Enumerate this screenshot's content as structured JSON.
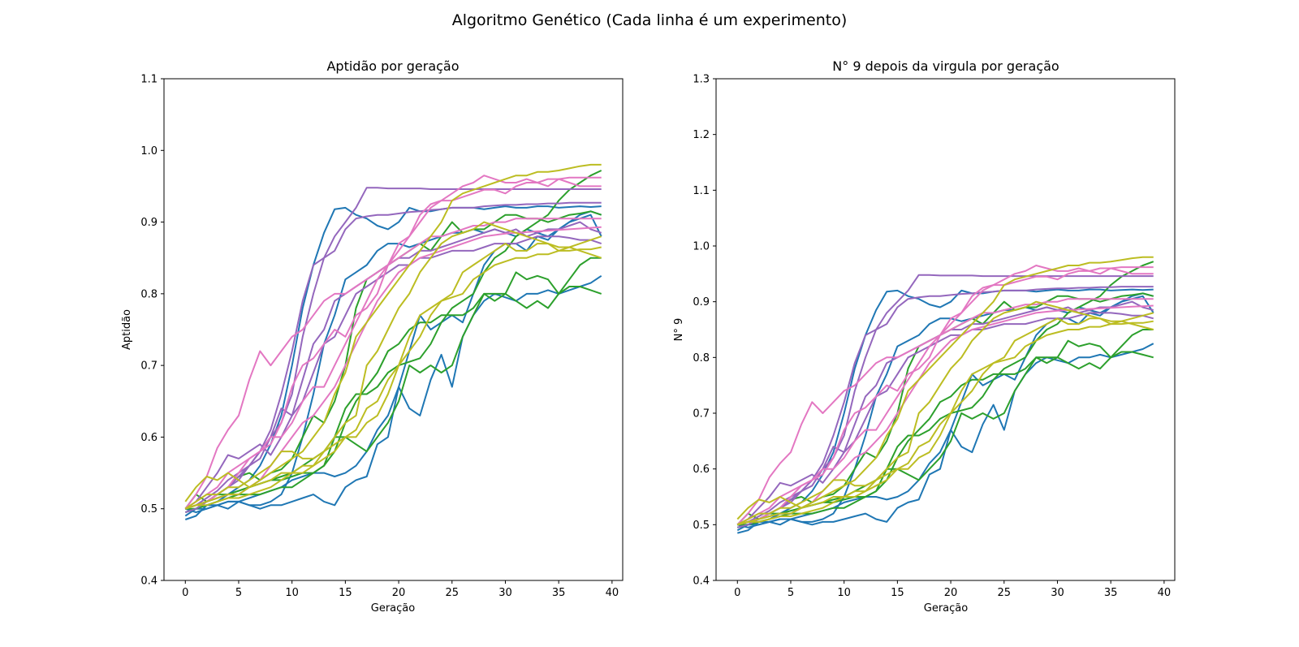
{
  "figure": {
    "suptitle": "Algoritmo Genético (Cada linha é um experimento)"
  },
  "colors": {
    "blue": "#1f77b4",
    "green": "#2ca02c",
    "purple": "#9467bd",
    "pink": "#e377c2",
    "olive": "#bcbd22",
    "axis": "#000000",
    "background": "#ffffff"
  },
  "chart_data": [
    {
      "type": "line",
      "title": "Aptidão por geração",
      "xlabel": "Geração",
      "ylabel": "Aptidão",
      "xlim": [
        -2,
        41
      ],
      "ylim": [
        0.4,
        1.1
      ],
      "xticks": [
        0,
        5,
        10,
        15,
        20,
        25,
        30,
        35,
        40
      ],
      "xtick_labels": [
        "0",
        "5",
        "10",
        "15",
        "20",
        "25",
        "30",
        "35",
        "40"
      ],
      "yticks": [
        0.4,
        0.5,
        0.6,
        0.7,
        0.8,
        0.9,
        1.0,
        1.1
      ],
      "ytick_labels": [
        "0.4",
        "0.5",
        "0.6",
        "0.7",
        "0.8",
        "0.9",
        "1.0",
        "1.1"
      ],
      "grid": false,
      "legend": "none",
      "x": [
        0,
        1,
        2,
        3,
        4,
        5,
        6,
        7,
        8,
        9,
        10,
        11,
        12,
        13,
        14,
        15,
        16,
        17,
        18,
        19,
        20,
        21,
        22,
        23,
        24,
        25,
        26,
        27,
        28,
        29,
        30,
        31,
        32,
        33,
        34,
        35,
        36,
        37,
        38,
        39
      ],
      "series": [
        {
          "color": "blue",
          "values": [
            0.485,
            0.49,
            0.505,
            0.51,
            0.52,
            0.53,
            0.54,
            0.56,
            0.59,
            0.63,
            0.7,
            0.78,
            0.84,
            0.885,
            0.918,
            0.92,
            0.91,
            0.905,
            0.895,
            0.89,
            0.9,
            0.92,
            0.915,
            0.915,
            0.918,
            0.92,
            0.92,
            0.92,
            0.918,
            0.92,
            0.922,
            0.92,
            0.92,
            0.922,
            0.922,
            0.92,
            0.921,
            0.922,
            0.921,
            0.922
          ]
        },
        {
          "color": "blue",
          "values": [
            0.49,
            0.5,
            0.505,
            0.505,
            0.51,
            0.51,
            0.505,
            0.505,
            0.51,
            0.52,
            0.55,
            0.6,
            0.66,
            0.73,
            0.77,
            0.82,
            0.83,
            0.84,
            0.86,
            0.87,
            0.87,
            0.865,
            0.87,
            0.875,
            0.88,
            0.885,
            0.885,
            0.89,
            0.885,
            0.89,
            0.885,
            0.88,
            0.89,
            0.885,
            0.88,
            0.89,
            0.9,
            0.905,
            0.91,
            0.88
          ]
        },
        {
          "color": "blue",
          "values": [
            0.495,
            0.5,
            0.5,
            0.505,
            0.5,
            0.51,
            0.505,
            0.5,
            0.505,
            0.505,
            0.51,
            0.515,
            0.52,
            0.51,
            0.505,
            0.53,
            0.54,
            0.545,
            0.59,
            0.6,
            0.67,
            0.64,
            0.63,
            0.68,
            0.715,
            0.67,
            0.74,
            0.77,
            0.79,
            0.8,
            0.795,
            0.79,
            0.8,
            0.8,
            0.805,
            0.8,
            0.805,
            0.81,
            0.815,
            0.825
          ]
        },
        {
          "color": "blue",
          "values": [
            0.5,
            0.495,
            0.5,
            0.505,
            0.51,
            0.51,
            0.515,
            0.52,
            0.525,
            0.53,
            0.54,
            0.545,
            0.55,
            0.55,
            0.545,
            0.55,
            0.56,
            0.58,
            0.61,
            0.63,
            0.67,
            0.72,
            0.77,
            0.75,
            0.76,
            0.77,
            0.76,
            0.8,
            0.84,
            0.86,
            0.87,
            0.87,
            0.86,
            0.88,
            0.875,
            0.89,
            0.9,
            0.91,
            0.915,
            0.91
          ]
        },
        {
          "color": "green",
          "values": [
            0.5,
            0.52,
            0.51,
            0.52,
            0.53,
            0.545,
            0.55,
            0.54,
            0.55,
            0.555,
            0.57,
            0.6,
            0.63,
            0.62,
            0.65,
            0.7,
            0.78,
            0.82,
            0.83,
            0.84,
            0.85,
            0.86,
            0.87,
            0.86,
            0.88,
            0.9,
            0.885,
            0.89,
            0.89,
            0.9,
            0.91,
            0.91,
            0.905,
            0.905,
            0.9,
            0.905,
            0.91,
            0.912,
            0.915,
            0.91
          ]
        },
        {
          "color": "green",
          "values": [
            0.495,
            0.5,
            0.51,
            0.515,
            0.52,
            0.525,
            0.53,
            0.535,
            0.54,
            0.54,
            0.545,
            0.55,
            0.55,
            0.56,
            0.6,
            0.64,
            0.66,
            0.66,
            0.67,
            0.69,
            0.7,
            0.705,
            0.71,
            0.73,
            0.76,
            0.78,
            0.79,
            0.8,
            0.83,
            0.85,
            0.86,
            0.88,
            0.89,
            0.9,
            0.91,
            0.93,
            0.945,
            0.955,
            0.965,
            0.972
          ]
        },
        {
          "color": "green",
          "values": [
            0.5,
            0.505,
            0.51,
            0.52,
            0.52,
            0.525,
            0.53,
            0.535,
            0.54,
            0.545,
            0.55,
            0.56,
            0.57,
            0.58,
            0.6,
            0.6,
            0.59,
            0.58,
            0.6,
            0.62,
            0.65,
            0.7,
            0.69,
            0.7,
            0.69,
            0.7,
            0.74,
            0.77,
            0.8,
            0.79,
            0.8,
            0.83,
            0.82,
            0.825,
            0.82,
            0.8,
            0.81,
            0.81,
            0.805,
            0.8
          ]
        },
        {
          "color": "green",
          "values": [
            0.5,
            0.5,
            0.505,
            0.51,
            0.515,
            0.52,
            0.52,
            0.52,
            0.525,
            0.53,
            0.53,
            0.54,
            0.55,
            0.56,
            0.58,
            0.62,
            0.65,
            0.67,
            0.69,
            0.72,
            0.73,
            0.75,
            0.76,
            0.76,
            0.77,
            0.77,
            0.77,
            0.78,
            0.8,
            0.8,
            0.8,
            0.79,
            0.78,
            0.79,
            0.78,
            0.8,
            0.82,
            0.84,
            0.85,
            0.85
          ]
        },
        {
          "color": "purple",
          "values": [
            0.495,
            0.5,
            0.51,
            0.52,
            0.53,
            0.54,
            0.56,
            0.58,
            0.61,
            0.66,
            0.72,
            0.79,
            0.84,
            0.85,
            0.86,
            0.89,
            0.905,
            0.908,
            0.91,
            0.91,
            0.912,
            0.914,
            0.915,
            0.917,
            0.918,
            0.92,
            0.92,
            0.92,
            0.922,
            0.923,
            0.924,
            0.924,
            0.925,
            0.925,
            0.926,
            0.926,
            0.927,
            0.927,
            0.927,
            0.927
          ]
        },
        {
          "color": "purple",
          "values": [
            0.5,
            0.505,
            0.51,
            0.52,
            0.53,
            0.545,
            0.56,
            0.58,
            0.6,
            0.62,
            0.66,
            0.74,
            0.8,
            0.85,
            0.88,
            0.9,
            0.92,
            0.948,
            0.948,
            0.947,
            0.947,
            0.947,
            0.947,
            0.946,
            0.946,
            0.946,
            0.946,
            0.946,
            0.946,
            0.946,
            0.946,
            0.946,
            0.946,
            0.946,
            0.946,
            0.946,
            0.946,
            0.946,
            0.946,
            0.946
          ]
        },
        {
          "color": "purple",
          "values": [
            0.5,
            0.505,
            0.515,
            0.525,
            0.54,
            0.55,
            0.56,
            0.57,
            0.6,
            0.64,
            0.63,
            0.68,
            0.73,
            0.75,
            0.79,
            0.8,
            0.81,
            0.82,
            0.83,
            0.84,
            0.85,
            0.85,
            0.86,
            0.86,
            0.865,
            0.87,
            0.875,
            0.88,
            0.885,
            0.89,
            0.885,
            0.89,
            0.88,
            0.885,
            0.89,
            0.89,
            0.895,
            0.9,
            0.89,
            0.885
          ]
        },
        {
          "color": "purple",
          "values": [
            0.5,
            0.51,
            0.53,
            0.55,
            0.575,
            0.57,
            0.58,
            0.59,
            0.575,
            0.6,
            0.63,
            0.65,
            0.69,
            0.73,
            0.74,
            0.77,
            0.8,
            0.81,
            0.82,
            0.83,
            0.84,
            0.84,
            0.85,
            0.85,
            0.855,
            0.86,
            0.86,
            0.86,
            0.865,
            0.87,
            0.87,
            0.87,
            0.875,
            0.88,
            0.88,
            0.88,
            0.878,
            0.875,
            0.875,
            0.87
          ]
        },
        {
          "color": "pink",
          "values": [
            0.5,
            0.52,
            0.545,
            0.585,
            0.61,
            0.63,
            0.68,
            0.72,
            0.7,
            0.72,
            0.74,
            0.75,
            0.77,
            0.79,
            0.8,
            0.8,
            0.81,
            0.82,
            0.83,
            0.84,
            0.85,
            0.86,
            0.87,
            0.88,
            0.88,
            0.885,
            0.89,
            0.895,
            0.895,
            0.9,
            0.9,
            0.905,
            0.905,
            0.905,
            0.905,
            0.905,
            0.905,
            0.905,
            0.905,
            0.905
          ]
        },
        {
          "color": "pink",
          "values": [
            0.5,
            0.505,
            0.51,
            0.52,
            0.53,
            0.55,
            0.57,
            0.58,
            0.59,
            0.62,
            0.67,
            0.7,
            0.71,
            0.73,
            0.75,
            0.74,
            0.77,
            0.78,
            0.8,
            0.84,
            0.87,
            0.88,
            0.9,
            0.92,
            0.93,
            0.94,
            0.95,
            0.955,
            0.965,
            0.96,
            0.955,
            0.955,
            0.96,
            0.955,
            0.96,
            0.96,
            0.962,
            0.962,
            0.962,
            0.962
          ]
        },
        {
          "color": "pink",
          "values": [
            0.5,
            0.51,
            0.52,
            0.53,
            0.55,
            0.56,
            0.57,
            0.58,
            0.6,
            0.6,
            0.62,
            0.65,
            0.67,
            0.67,
            0.7,
            0.73,
            0.76,
            0.79,
            0.82,
            0.84,
            0.86,
            0.88,
            0.91,
            0.925,
            0.93,
            0.93,
            0.935,
            0.94,
            0.945,
            0.945,
            0.94,
            0.95,
            0.955,
            0.955,
            0.95,
            0.96,
            0.955,
            0.95,
            0.95,
            0.95
          ]
        },
        {
          "color": "pink",
          "values": [
            0.5,
            0.505,
            0.51,
            0.515,
            0.52,
            0.52,
            0.53,
            0.54,
            0.56,
            0.58,
            0.6,
            0.62,
            0.63,
            0.65,
            0.67,
            0.7,
            0.73,
            0.76,
            0.79,
            0.81,
            0.83,
            0.84,
            0.85,
            0.855,
            0.86,
            0.865,
            0.87,
            0.875,
            0.88,
            0.882,
            0.884,
            0.885,
            0.886,
            0.887,
            0.888,
            0.889,
            0.89,
            0.891,
            0.892,
            0.893
          ]
        },
        {
          "color": "olive",
          "values": [
            0.51,
            0.53,
            0.545,
            0.54,
            0.55,
            0.54,
            0.53,
            0.54,
            0.55,
            0.56,
            0.57,
            0.58,
            0.6,
            0.62,
            0.66,
            0.69,
            0.74,
            0.76,
            0.78,
            0.8,
            0.82,
            0.84,
            0.86,
            0.88,
            0.9,
            0.93,
            0.94,
            0.945,
            0.95,
            0.955,
            0.96,
            0.965,
            0.965,
            0.97,
            0.97,
            0.972,
            0.975,
            0.978,
            0.98,
            0.98
          ]
        },
        {
          "color": "olive",
          "values": [
            0.5,
            0.51,
            0.52,
            0.52,
            0.53,
            0.53,
            0.54,
            0.55,
            0.56,
            0.58,
            0.58,
            0.57,
            0.57,
            0.58,
            0.6,
            0.62,
            0.63,
            0.7,
            0.72,
            0.75,
            0.78,
            0.8,
            0.83,
            0.85,
            0.87,
            0.88,
            0.885,
            0.89,
            0.9,
            0.895,
            0.89,
            0.885,
            0.88,
            0.875,
            0.87,
            0.865,
            0.865,
            0.86,
            0.855,
            0.85
          ]
        },
        {
          "color": "olive",
          "values": [
            0.5,
            0.505,
            0.51,
            0.515,
            0.52,
            0.52,
            0.53,
            0.535,
            0.54,
            0.55,
            0.55,
            0.56,
            0.56,
            0.57,
            0.58,
            0.6,
            0.61,
            0.64,
            0.65,
            0.68,
            0.7,
            0.72,
            0.74,
            0.77,
            0.79,
            0.8,
            0.83,
            0.84,
            0.85,
            0.86,
            0.87,
            0.86,
            0.86,
            0.87,
            0.87,
            0.86,
            0.865,
            0.87,
            0.875,
            0.88
          ]
        },
        {
          "color": "olive",
          "values": [
            0.5,
            0.505,
            0.505,
            0.51,
            0.515,
            0.515,
            0.52,
            0.525,
            0.53,
            0.54,
            0.55,
            0.55,
            0.56,
            0.58,
            0.59,
            0.6,
            0.6,
            0.62,
            0.63,
            0.66,
            0.7,
            0.74,
            0.77,
            0.78,
            0.79,
            0.795,
            0.8,
            0.82,
            0.83,
            0.84,
            0.845,
            0.85,
            0.85,
            0.855,
            0.855,
            0.86,
            0.86,
            0.862,
            0.862,
            0.865
          ]
        }
      ]
    },
    {
      "type": "line",
      "title": "N° 9 depois da virgula por geração",
      "xlabel": "Geração",
      "ylabel": "N° 9",
      "xlim": [
        -2,
        41
      ],
      "ylim": [
        0.4,
        1.3
      ],
      "xticks": [
        0,
        5,
        10,
        15,
        20,
        25,
        30,
        35,
        40
      ],
      "xtick_labels": [
        "0",
        "5",
        "10",
        "15",
        "20",
        "25",
        "30",
        "35",
        "40"
      ],
      "yticks": [
        0.4,
        0.5,
        0.6,
        0.7,
        0.8,
        0.9,
        1.0,
        1.1,
        1.2,
        1.3
      ],
      "ytick_labels": [
        "0.4",
        "0.5",
        "0.6",
        "0.7",
        "0.8",
        "0.9",
        "1.0",
        "1.1",
        "1.2",
        "1.3"
      ],
      "grid": false,
      "legend": "none",
      "same_series_as_first_chart": true
    }
  ]
}
